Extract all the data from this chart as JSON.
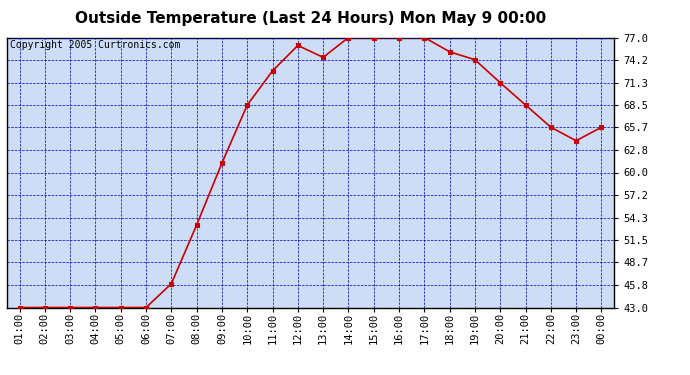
{
  "title": "Outside Temperature (Last 24 Hours) Mon May 9 00:00",
  "copyright": "Copyright 2005 Curtronics.com",
  "x_labels": [
    "01:00",
    "02:00",
    "03:00",
    "04:00",
    "05:00",
    "06:00",
    "07:00",
    "08:00",
    "09:00",
    "10:00",
    "11:00",
    "12:00",
    "13:00",
    "14:00",
    "15:00",
    "16:00",
    "17:00",
    "18:00",
    "19:00",
    "20:00",
    "21:00",
    "22:00",
    "23:00",
    "00:00"
  ],
  "y_values": [
    43.0,
    43.0,
    43.0,
    43.0,
    43.0,
    43.0,
    46.0,
    53.4,
    61.2,
    68.5,
    72.8,
    76.0,
    74.5,
    77.0,
    77.0,
    77.0,
    77.0,
    75.2,
    74.2,
    71.3,
    68.5,
    65.7,
    64.0,
    65.7
  ],
  "yticks": [
    43.0,
    45.8,
    48.7,
    51.5,
    54.3,
    57.2,
    60.0,
    62.8,
    65.7,
    68.5,
    71.3,
    74.2,
    77.0
  ],
  "ylim": [
    43.0,
    77.0
  ],
  "line_color": "#cc0000",
  "marker_color": "#cc0000",
  "grid_color": "#0000bb",
  "bg_color": "#ccddf5",
  "title_fontsize": 11,
  "copyright_fontsize": 7,
  "axis_fontsize": 7.5
}
